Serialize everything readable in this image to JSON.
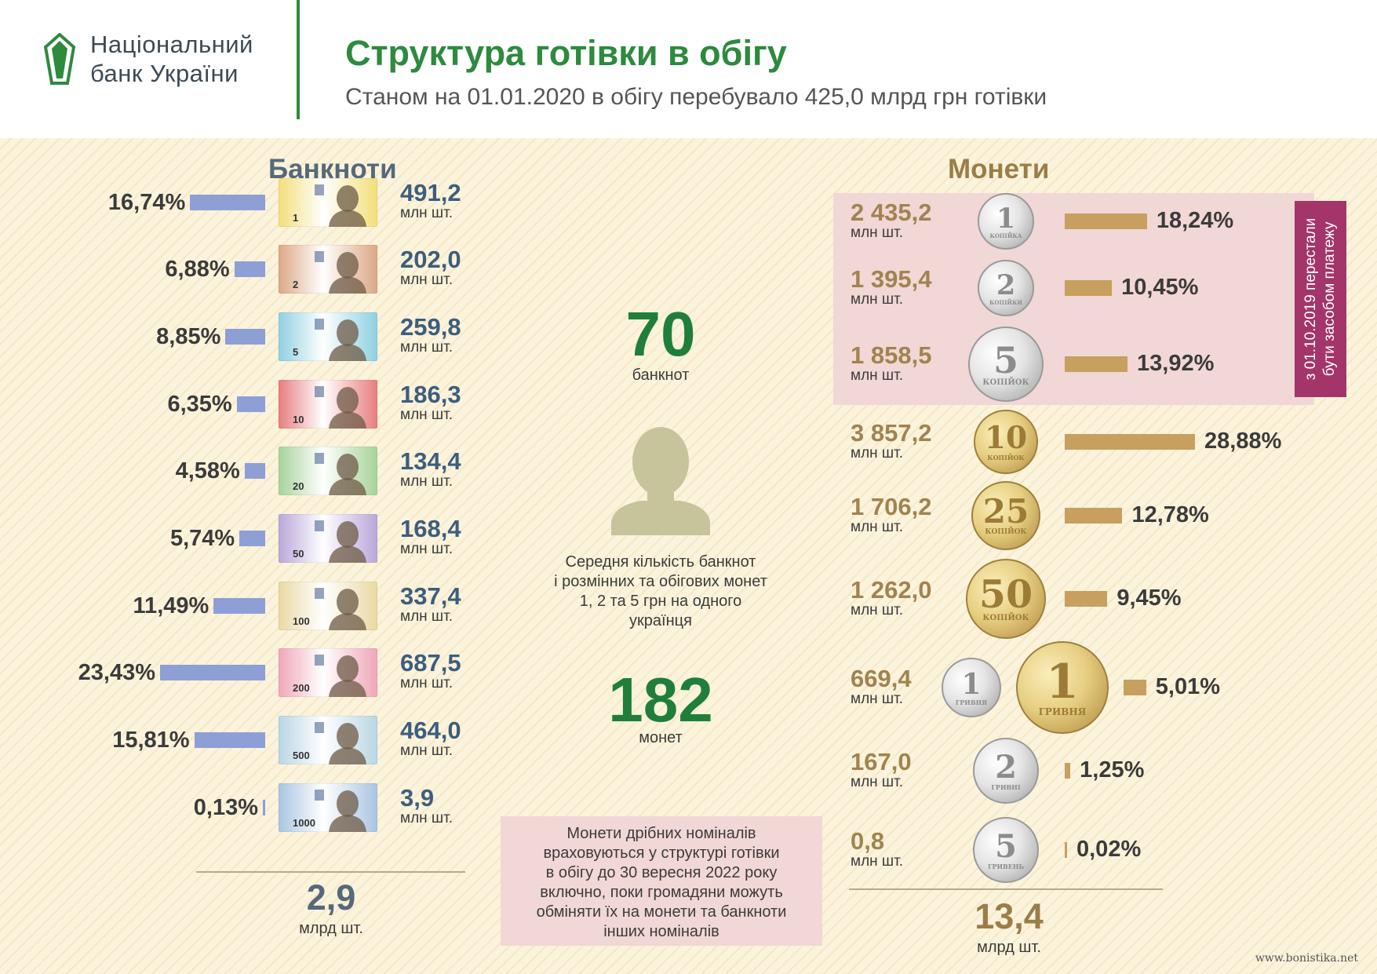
{
  "header": {
    "bank_name_line1": "Національний",
    "bank_name_line2": "банк України",
    "title": "Структура готівки в обігу",
    "subtitle": "Станом на 01.01.2020 в обігу перебувало 425,0  млрд  грн готівки"
  },
  "banknotes": {
    "title": "Банкноти",
    "unit": "млн шт.",
    "items": [
      {
        "denom": "1",
        "pct": "16,74%",
        "pct_value": 16.74,
        "count": "491,2",
        "color": "#f3df7a"
      },
      {
        "denom": "2",
        "pct": "6,88%",
        "pct_value": 6.88,
        "count": "202,0",
        "color": "#dca886"
      },
      {
        "denom": "5",
        "pct": "8,85%",
        "pct_value": 8.85,
        "count": "259,8",
        "color": "#8fd0e2"
      },
      {
        "denom": "10",
        "pct": "6,35%",
        "pct_value": 6.35,
        "count": "186,3",
        "color": "#e77d80"
      },
      {
        "denom": "20",
        "pct": "4,58%",
        "pct_value": 4.58,
        "count": "134,4",
        "color": "#a7d39a"
      },
      {
        "denom": "50",
        "pct": "5,74%",
        "pct_value": 5.74,
        "count": "168,4",
        "color": "#b9a7d9"
      },
      {
        "denom": "100",
        "pct": "11,49%",
        "pct_value": 11.49,
        "count": "337,4",
        "color": "#ead9a4"
      },
      {
        "denom": "200",
        "pct": "23,43%",
        "pct_value": 23.43,
        "count": "687,5",
        "color": "#efa7b8"
      },
      {
        "denom": "500",
        "pct": "15,81%",
        "pct_value": 15.81,
        "count": "464,0",
        "color": "#b9d6e4"
      },
      {
        "denom": "1000",
        "pct": "0,13%",
        "pct_value": 0.13,
        "count": "3,9",
        "color": "#a9c5e2"
      }
    ],
    "total": "2,9",
    "total_unit": "млрд шт."
  },
  "center": {
    "banknotes_per_person": "70",
    "banknotes_label": "банкнот",
    "description": [
      "Середня кількість банкнот",
      "і  розмінних та обігових монет",
      "1, 2 та 5 грн на одного",
      "українця"
    ],
    "coins_per_person": "182",
    "coins_label": "монет",
    "note": [
      "Монети дрібних номіналів",
      "враховуються у структурі готівки",
      "в  обігу  до 30 вересня 2022 року",
      "включно, поки громадяни можуть",
      "обміняти їх  на монети та банкноти",
      "інших номіналів"
    ]
  },
  "coins": {
    "title": "Монети",
    "unit": "млн шт.",
    "withdrawn_note": [
      "з 01.10.2019 перестали",
      "бути засобом  платежу"
    ],
    "items": [
      {
        "face": "1",
        "label": "КОПІЙКА",
        "pct": "18,24%",
        "pct_value": 18.24,
        "count": "2 435,2",
        "metal": "silver"
      },
      {
        "face": "2",
        "label": "КОПІЙКИ",
        "pct": "10,45%",
        "pct_value": 10.45,
        "count": "1 395,4",
        "metal": "silver"
      },
      {
        "face": "5",
        "label": "КОПІЙОК",
        "pct": "13,92%",
        "pct_value": 13.92,
        "count": "1 858,5",
        "metal": "silver"
      },
      {
        "face": "10",
        "label": "КОПІЙОК",
        "pct": "28,88%",
        "pct_value": 28.88,
        "count": "3 857,2",
        "metal": "gold"
      },
      {
        "face": "25",
        "label": "КОПІЙОК",
        "pct": "12,78%",
        "pct_value": 12.78,
        "count": "1 706,2",
        "metal": "gold"
      },
      {
        "face": "50",
        "label": "КОПІЙОК",
        "pct": "9,45%",
        "pct_value": 9.45,
        "count": "1 262,0",
        "metal": "gold"
      },
      {
        "face": "1",
        "label": "ГРИВНЯ",
        "pct": "5,01%",
        "pct_value": 5.01,
        "count": "669,4",
        "metal": "silver"
      },
      {
        "face": "2",
        "label": "ГРИВНІ",
        "pct": "1,25%",
        "pct_value": 1.25,
        "count": "167,0",
        "metal": "silver"
      },
      {
        "face": "5",
        "label": "ГРИВЕНЬ",
        "pct": "0,02%",
        "pct_value": 0.02,
        "count": "0,8",
        "metal": "silver"
      }
    ],
    "old_hryvnia": {
      "face": "1",
      "label": "ГРИВНЯ"
    },
    "total": "13,4",
    "total_unit": "млрд шт."
  },
  "watermark": "www.bonistika.net",
  "colors": {
    "title_green": "#2d8a3e",
    "banknote_bar": "#8e9fd6",
    "coin_bar": "#c79f5f",
    "banknote_title": "#56687a",
    "coin_title": "#9a7d47",
    "withdrawn_bg": "#a3356a"
  }
}
